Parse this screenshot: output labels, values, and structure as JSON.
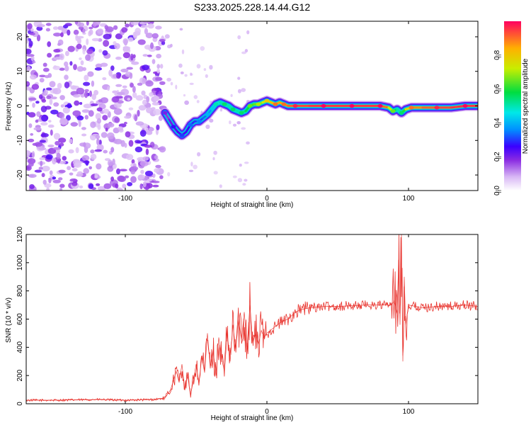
{
  "figure_title": "S233.2025.228.14.44.G12",
  "chart_data": [
    {
      "type": "heatmap",
      "title": "S233.2025.228.14.44.G12",
      "xlabel": "Height of straight line (km)",
      "ylabel": "Frequency (Hz)",
      "xlim": [
        -170,
        149
      ],
      "ylim": [
        -24.5,
        24.5
      ],
      "xticks": [
        -100,
        0,
        100
      ],
      "yticks": [
        -20,
        -10,
        0,
        10,
        20
      ],
      "grid": false,
      "noise_region_x": [
        -170,
        -73
      ],
      "signal_ridge": {
        "x": [
          -72,
          -69,
          -66,
          -63,
          -60,
          -57,
          -54,
          -51,
          -48,
          -45,
          -42,
          -39,
          -36,
          -33,
          -30,
          -27,
          -24,
          -21,
          -18,
          -15,
          -12,
          -9,
          -6,
          -3,
          0,
          3,
          6,
          9,
          12,
          15,
          20,
          30,
          40,
          50,
          60,
          70,
          80,
          86,
          89,
          92,
          95,
          98,
          102,
          110,
          120,
          130,
          140,
          149
        ],
        "freq": [
          -2,
          -4,
          -6,
          -7.5,
          -8.5,
          -7.5,
          -5.5,
          -4.5,
          -4.5,
          -3.5,
          -2.5,
          -1,
          0.5,
          1,
          0.5,
          0,
          -1,
          -1.5,
          -2,
          -1.5,
          0,
          0.5,
          0.5,
          1,
          1.5,
          1,
          0.5,
          1,
          0.5,
          0,
          0,
          0,
          0,
          0,
          0,
          0,
          0,
          -0.5,
          -1.5,
          -1,
          -2,
          -1,
          -0.5,
          -0.5,
          -0.5,
          -0.5,
          0,
          0
        ],
        "amplitude": [
          0.15,
          0.2,
          0.22,
          0.25,
          0.25,
          0.25,
          0.28,
          0.3,
          0.3,
          0.32,
          0.35,
          0.4,
          0.45,
          0.5,
          0.5,
          0.5,
          0.5,
          0.5,
          0.5,
          0.55,
          0.6,
          0.65,
          0.65,
          0.7,
          0.75,
          0.8,
          0.85,
          0.85,
          0.85,
          0.9,
          0.92,
          0.95,
          0.95,
          0.95,
          0.95,
          0.95,
          0.95,
          0.85,
          0.6,
          0.5,
          0.5,
          0.7,
          0.85,
          0.9,
          0.92,
          0.95,
          0.95,
          0.95
        ]
      },
      "colorbar": {
        "label": "Normalized spectral amplitude",
        "range": [
          0,
          1
        ],
        "ticks": [
          0.0,
          0.2,
          0.4,
          0.6,
          0.8
        ],
        "tick_labels": [
          "0.0",
          "0.2",
          "0.4",
          "0.6",
          "0.8"
        ]
      }
    },
    {
      "type": "line",
      "xlabel": "Height of straight line (km)",
      "ylabel": "SNR (10 * v/v)",
      "xlim": [
        -170,
        149
      ],
      "ylim": [
        0,
        1200
      ],
      "xticks": [
        -100,
        0,
        100
      ],
      "yticks": [
        0,
        200,
        400,
        600,
        800,
        1000,
        1200
      ],
      "grid": false,
      "series": [
        {
          "name": "SNR",
          "color": "#e8302a",
          "x": [
            -170,
            -150,
            -120,
            -100,
            -80,
            -72,
            -68,
            -64,
            -62,
            -60,
            -58,
            -56,
            -54,
            -52,
            -50,
            -48,
            -46,
            -44,
            -42,
            -40,
            -38,
            -36,
            -34,
            -32,
            -30,
            -28,
            -26,
            -24,
            -22,
            -20,
            -18,
            -16,
            -14,
            -12,
            -10,
            -8,
            -6,
            -4,
            -2,
            0,
            5,
            10,
            15,
            20,
            25,
            30,
            40,
            50,
            60,
            70,
            80,
            88,
            90,
            92,
            93,
            94,
            95,
            96,
            97,
            98,
            100,
            105,
            110,
            120,
            130,
            140,
            149
          ],
          "values": [
            25,
            25,
            30,
            25,
            30,
            40,
            100,
            230,
            150,
            280,
            100,
            200,
            60,
            160,
            280,
            150,
            330,
            220,
            500,
            250,
            380,
            200,
            470,
            320,
            230,
            500,
            300,
            560,
            380,
            600,
            450,
            650,
            400,
            700,
            430,
            500,
            420,
            520,
            470,
            500,
            540,
            580,
            600,
            650,
            670,
            680,
            690,
            690,
            695,
            700,
            700,
            700,
            730,
            640,
            1020,
            560,
            1200,
            300,
            900,
            560,
            700,
            690,
            680,
            690,
            690,
            700,
            690
          ]
        }
      ]
    }
  ]
}
